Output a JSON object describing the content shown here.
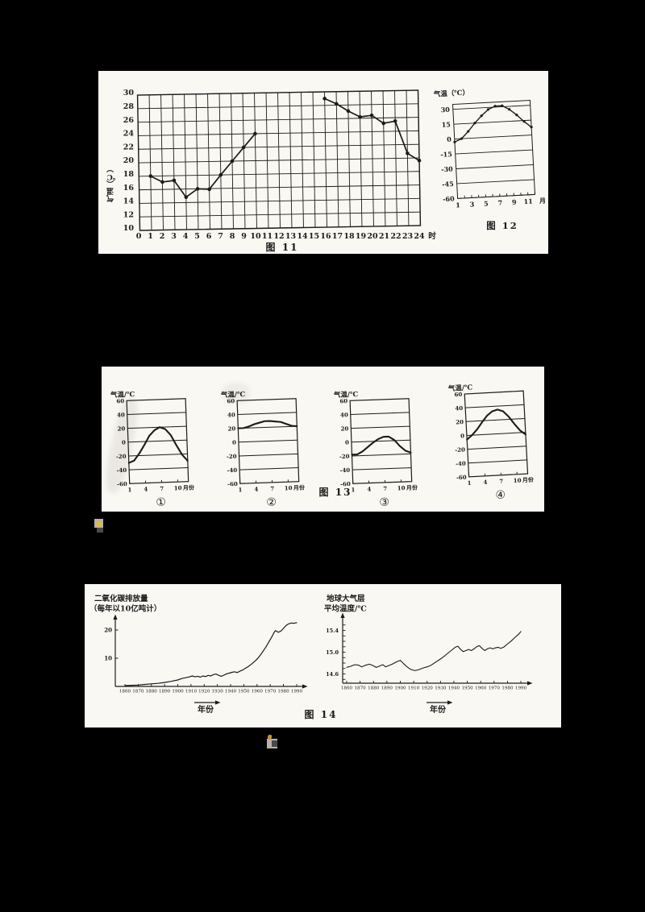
{
  "page": {
    "background": "#000000",
    "paper_color": "#f9f8f3",
    "ink_color": "#1b1b1b"
  },
  "artifacts": {
    "gray": "#b7b3ab",
    "yellow": "#e2bb3c",
    "dark": "#4a4a48",
    "orange": "#cf8f2e"
  },
  "chart_data": [
    {
      "id": "fig11",
      "type": "line",
      "title": "",
      "ylabel": "气温（℃）",
      "x_unit": "时",
      "caption": "图 11",
      "xlim": [
        0,
        24
      ],
      "ylim": [
        10,
        30
      ],
      "x_ticks": [
        0,
        1,
        2,
        3,
        4,
        5,
        6,
        7,
        8,
        9,
        10,
        11,
        12,
        13,
        14,
        15,
        16,
        17,
        18,
        19,
        20,
        21,
        22,
        23,
        24
      ],
      "y_ticks": [
        30,
        28,
        26,
        24,
        22,
        20,
        18,
        16,
        14,
        12,
        10
      ],
      "grid": "full",
      "legend": "none",
      "series": [
        {
          "name": "气温 1-10时",
          "x": [
            1,
            2,
            3,
            4,
            5,
            6,
            7,
            8,
            9,
            10
          ],
          "y": [
            18,
            17.1,
            17.3,
            14.8,
            16,
            15.9,
            18,
            20,
            22,
            24
          ]
        },
        {
          "name": "气温 16-24时",
          "x": [
            16,
            17,
            18,
            19,
            20,
            21,
            22,
            23,
            24
          ],
          "y": [
            29,
            28.2,
            27.1,
            26.2,
            26.4,
            25.2,
            25.5,
            20.7,
            19.6
          ]
        }
      ]
    },
    {
      "id": "fig12",
      "type": "line",
      "title": "气温（℃）",
      "x_unit": "月",
      "caption": "图 12",
      "xlim": [
        1,
        12
      ],
      "ylim": [
        -60,
        35
      ],
      "x_ticks": [
        1,
        3,
        5,
        7,
        9,
        11
      ],
      "y_ticks": [
        30,
        15,
        0,
        -15,
        -30,
        -45,
        -60
      ],
      "grid": "horizontal",
      "series": [
        {
          "name": "月平均气温",
          "x": [
            1,
            2,
            3,
            4,
            5,
            6,
            7,
            8,
            9,
            10,
            11,
            12
          ],
          "y": [
            -3,
            0,
            7,
            15,
            22,
            28,
            31,
            31,
            27,
            21,
            14,
            8
          ]
        }
      ]
    },
    {
      "id": "fig13",
      "type": "line-small-multiples",
      "title": "气温/℃",
      "x_unit": "月份",
      "caption": "图 13",
      "xlim": [
        1,
        12
      ],
      "ylim": [
        -60,
        60
      ],
      "x_ticks": [
        1,
        4,
        7,
        10
      ],
      "y_ticks": [
        60,
        40,
        20,
        0,
        -20,
        -40,
        -60
      ],
      "months": [
        1,
        2,
        3,
        4,
        5,
        6,
        7,
        8,
        9,
        10,
        11,
        12
      ],
      "charts": [
        {
          "label": "①",
          "values": [
            -30,
            -27,
            -17,
            -5,
            8,
            16,
            20,
            17,
            8,
            -7,
            -21,
            -30
          ]
        },
        {
          "label": "②",
          "values": [
            20,
            20,
            22,
            25,
            27,
            29,
            29,
            28,
            27,
            24,
            21,
            20
          ]
        },
        {
          "label": "③",
          "values": [
            -18,
            -18,
            -14,
            -8,
            -2,
            3,
            6,
            6,
            1,
            -8,
            -15,
            -18
          ]
        },
        {
          "label": "④",
          "values": [
            -6,
            0,
            8,
            18,
            27,
            33,
            35,
            32,
            24,
            13,
            3,
            -3
          ]
        }
      ]
    },
    {
      "id": "fig14-co2",
      "type": "line",
      "title_lines": [
        "二氧化碳排放量",
        "（每年以10亿吨计）"
      ],
      "xlabel": "年份",
      "caption": "图 14",
      "xlim": [
        1856,
        1994
      ],
      "ylim": [
        0,
        25
      ],
      "x_ticks": [
        1860,
        1870,
        1880,
        1890,
        1900,
        1910,
        1920,
        1930,
        1940,
        1950,
        1960,
        1970,
        1980,
        1990
      ],
      "y_ticks": [
        20,
        10
      ],
      "points": [
        [
          1860,
          0.3
        ],
        [
          1865,
          0.4
        ],
        [
          1870,
          0.5
        ],
        [
          1875,
          0.7
        ],
        [
          1880,
          0.9
        ],
        [
          1885,
          1.1
        ],
        [
          1890,
          1.4
        ],
        [
          1895,
          1.8
        ],
        [
          1900,
          2.3
        ],
        [
          1903,
          2.8
        ],
        [
          1906,
          3.1
        ],
        [
          1909,
          3.4
        ],
        [
          1911,
          3.7
        ],
        [
          1913,
          3.4
        ],
        [
          1915,
          3.6
        ],
        [
          1917,
          3.3
        ],
        [
          1919,
          3.7
        ],
        [
          1921,
          3.5
        ],
        [
          1923,
          3.9
        ],
        [
          1925,
          3.7
        ],
        [
          1927,
          4.2
        ],
        [
          1929,
          4.4
        ],
        [
          1931,
          3.9
        ],
        [
          1933,
          3.6
        ],
        [
          1935,
          4.0
        ],
        [
          1937,
          4.5
        ],
        [
          1939,
          4.7
        ],
        [
          1941,
          5.0
        ],
        [
          1943,
          5.2
        ],
        [
          1945,
          4.9
        ],
        [
          1947,
          5.4
        ],
        [
          1949,
          5.8
        ],
        [
          1951,
          6.4
        ],
        [
          1953,
          6.9
        ],
        [
          1955,
          7.6
        ],
        [
          1957,
          8.4
        ],
        [
          1959,
          9.2
        ],
        [
          1961,
          10.2
        ],
        [
          1963,
          11.4
        ],
        [
          1965,
          12.8
        ],
        [
          1967,
          14.2
        ],
        [
          1969,
          15.8
        ],
        [
          1971,
          17.4
        ],
        [
          1973,
          19.2
        ],
        [
          1974,
          19.8
        ],
        [
          1976,
          19.2
        ],
        [
          1978,
          19.6
        ],
        [
          1980,
          20.6
        ],
        [
          1982,
          21.6
        ],
        [
          1984,
          22.2
        ],
        [
          1986,
          22.5
        ],
        [
          1988,
          22.4
        ],
        [
          1990,
          22.6
        ]
      ]
    },
    {
      "id": "fig14-temp",
      "type": "line",
      "title_lines": [
        "地球大气层",
        "平均温度/℃"
      ],
      "xlabel": "年份",
      "caption": "",
      "xlim": [
        1856,
        1994
      ],
      "ylim": [
        14.45,
        15.55
      ],
      "x_ticks": [
        1860,
        1870,
        1880,
        1890,
        1900,
        1910,
        1920,
        1930,
        1940,
        1950,
        1960,
        1970,
        1980,
        1990
      ],
      "y_ticks": [
        "15.4",
        "15.0",
        "14.6"
      ],
      "points": [
        [
          1860,
          14.72
        ],
        [
          1863,
          14.74
        ],
        [
          1866,
          14.77
        ],
        [
          1869,
          14.76
        ],
        [
          1871,
          14.73
        ],
        [
          1874,
          14.76
        ],
        [
          1877,
          14.78
        ],
        [
          1880,
          14.75
        ],
        [
          1882,
          14.72
        ],
        [
          1885,
          14.75
        ],
        [
          1887,
          14.77
        ],
        [
          1889,
          14.73
        ],
        [
          1891,
          14.75
        ],
        [
          1894,
          14.78
        ],
        [
          1897,
          14.82
        ],
        [
          1900,
          14.85
        ],
        [
          1902,
          14.8
        ],
        [
          1905,
          14.73
        ],
        [
          1908,
          14.68
        ],
        [
          1911,
          14.66
        ],
        [
          1914,
          14.68
        ],
        [
          1917,
          14.71
        ],
        [
          1920,
          14.73
        ],
        [
          1923,
          14.76
        ],
        [
          1926,
          14.81
        ],
        [
          1929,
          14.86
        ],
        [
          1932,
          14.91
        ],
        [
          1935,
          14.97
        ],
        [
          1938,
          15.03
        ],
        [
          1941,
          15.09
        ],
        [
          1943,
          15.11
        ],
        [
          1945,
          15.05
        ],
        [
          1947,
          15.01
        ],
        [
          1949,
          15.03
        ],
        [
          1951,
          15.05
        ],
        [
          1953,
          15.03
        ],
        [
          1955,
          15.06
        ],
        [
          1957,
          15.1
        ],
        [
          1959,
          15.12
        ],
        [
          1961,
          15.07
        ],
        [
          1963,
          15.03
        ],
        [
          1965,
          15.06
        ],
        [
          1967,
          15.08
        ],
        [
          1969,
          15.06
        ],
        [
          1971,
          15.08
        ],
        [
          1973,
          15.09
        ],
        [
          1975,
          15.07
        ],
        [
          1977,
          15.09
        ],
        [
          1979,
          15.13
        ],
        [
          1981,
          15.17
        ],
        [
          1983,
          15.21
        ],
        [
          1985,
          15.26
        ],
        [
          1987,
          15.3
        ],
        [
          1989,
          15.35
        ],
        [
          1990,
          15.38
        ]
      ]
    }
  ]
}
